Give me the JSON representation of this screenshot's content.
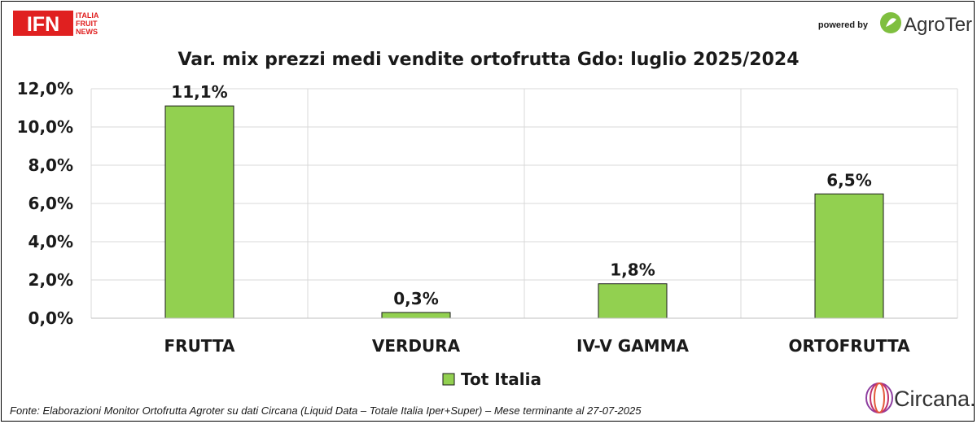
{
  "logos": {
    "ifn_letters": "IFN",
    "ifn_line1": "ITALIA",
    "ifn_line2": "FRUIT",
    "ifn_line3": "NEWS",
    "powered_by": "powered by",
    "agroter": "AgroTer",
    "circana": "Circana."
  },
  "source_note": "Fonte: Elaborazioni Monitor Ortofrutta Agroter su dati Circana (Liquid Data – Totale Italia Iper+Super) – Mese terminante al 27-07-2025",
  "colors": {
    "bar": "#92d050",
    "bar_stroke": "#1a1a1a",
    "grid": "#d9d9d9",
    "ifn_red": "#e02020"
  },
  "chart_data": {
    "type": "bar",
    "title": "Var. mix prezzi medi vendite ortofrutta Gdo: luglio 2025/2024",
    "categories": [
      "FRUTTA",
      "VERDURA",
      "IV-V GAMMA",
      "ORTOFRUTTA"
    ],
    "series": [
      {
        "name": "Tot Italia",
        "values": [
          11.1,
          0.3,
          1.8,
          6.5
        ]
      }
    ],
    "data_labels": [
      "11,1%",
      "0,3%",
      "1,8%",
      "6,5%"
    ],
    "ylim": [
      0,
      12
    ],
    "yticks": [
      0,
      2,
      4,
      6,
      8,
      10,
      12
    ],
    "ytick_labels": [
      "0,0%",
      "2,0%",
      "4,0%",
      "6,0%",
      "8,0%",
      "10,0%",
      "12,0%"
    ],
    "grid": true,
    "legend_position": "bottom"
  }
}
